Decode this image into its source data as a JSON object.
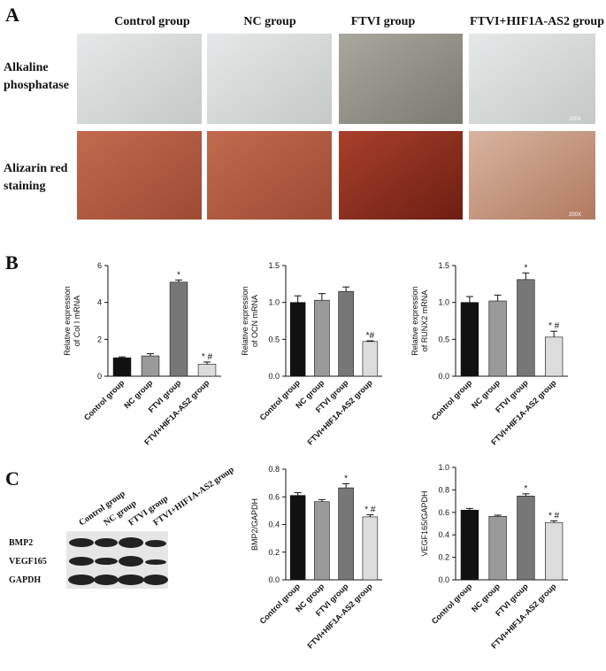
{
  "panel_labels": [
    "A",
    "B",
    "C"
  ],
  "panel_a": {
    "columns": [
      "Control group",
      "NC group",
      "FTVI group",
      "FTVI+HIF1A-AS2 group"
    ],
    "rows": [
      [
        "Alkaline",
        "phosphatase"
      ],
      [
        "Alizarin red",
        "staining"
      ]
    ],
    "scale_labels": [
      "200X",
      "200X"
    ]
  },
  "panel_c": {
    "lanes": [
      "Control group",
      "NC group",
      "FTVI group",
      "FTVI+HIF1A-AS2 group"
    ],
    "bands": [
      "BMP2",
      "VEGF165",
      "GAPDH"
    ]
  },
  "chart_data": [
    {
      "type": "bar",
      "ylabel": [
        "Relative expression",
        "of Col I mRNA"
      ],
      "categories": [
        "Control group",
        "NC group",
        "FTVI group",
        "FTVI+HIF1A-AS2 group"
      ],
      "values": [
        1.0,
        1.1,
        5.1,
        0.65
      ],
      "errors": [
        0.05,
        0.12,
        0.12,
        0.12
      ],
      "annotations": [
        null,
        null,
        "*",
        "* #"
      ],
      "colors": [
        "#111111",
        "#9a9a9a",
        "#777777",
        "#dcdcdc"
      ],
      "ylim": [
        0,
        6
      ],
      "yticks": [
        0,
        2,
        4,
        6
      ]
    },
    {
      "type": "bar",
      "ylabel": [
        "Relative expression",
        "of OCN mRNA"
      ],
      "categories": [
        "Control group",
        "NC group",
        "FTVI group",
        "FTVI+HIF1A-AS2 group"
      ],
      "values": [
        1.0,
        1.03,
        1.15,
        0.47
      ],
      "errors": [
        0.09,
        0.09,
        0.06,
        0.01
      ],
      "annotations": [
        null,
        null,
        null,
        "*#"
      ],
      "colors": [
        "#111111",
        "#9a9a9a",
        "#777777",
        "#dcdcdc"
      ],
      "ylim": [
        0,
        1.5
      ],
      "yticks": [
        {
          "value": 0,
          "label": "0.0"
        },
        {
          "value": 0.5,
          "label": "0.5"
        },
        {
          "value": 1,
          "label": "1.0"
        },
        {
          "value": 1.5,
          "label": "1.5"
        }
      ]
    },
    {
      "type": "bar",
      "ylabel": [
        "Relative expression",
        "of RUNX2 mRNA"
      ],
      "categories": [
        "Control group",
        "NC group",
        "FTVI group",
        "FTVI+HIF1A-AS2 group"
      ],
      "values": [
        1.0,
        1.02,
        1.31,
        0.53
      ],
      "errors": [
        0.08,
        0.08,
        0.09,
        0.08
      ],
      "annotations": [
        null,
        null,
        "*",
        "* #"
      ],
      "colors": [
        "#111111",
        "#9a9a9a",
        "#777777",
        "#dcdcdc"
      ],
      "ylim": [
        0,
        1.5
      ],
      "yticks": [
        {
          "value": 0,
          "label": "0.0"
        },
        {
          "value": 0.5,
          "label": "0.5"
        },
        {
          "value": 1,
          "label": "1.0"
        },
        {
          "value": 1.5,
          "label": "1.5"
        }
      ]
    },
    {
      "type": "bar",
      "ylabel": [
        "BMP2/GAPDH"
      ],
      "categories": [
        "Control group",
        "NC group",
        "FTVI group",
        "FTVI+HIF1A-AS2 group"
      ],
      "values": [
        0.61,
        0.565,
        0.665,
        0.455
      ],
      "errors": [
        0.02,
        0.015,
        0.03,
        0.015
      ],
      "annotations": [
        null,
        null,
        "*",
        "* #"
      ],
      "colors": [
        "#111111",
        "#9a9a9a",
        "#777777",
        "#dcdcdc"
      ],
      "ylim": [
        0,
        0.8
      ],
      "yticks": [
        {
          "value": 0,
          "label": "0.0"
        },
        {
          "value": 0.2,
          "label": "0.2"
        },
        {
          "value": 0.4,
          "label": "0.4"
        },
        {
          "value": 0.6,
          "label": "0.6"
        },
        {
          "value": 0.8,
          "label": "0.8"
        }
      ]
    },
    {
      "type": "bar",
      "ylabel": [
        "VEGF165/GAPDH"
      ],
      "categories": [
        "Control group",
        "NC group",
        "FTVI group",
        "FTVI+HIF1A-AS2 group"
      ],
      "values": [
        0.62,
        0.565,
        0.745,
        0.51
      ],
      "errors": [
        0.015,
        0.01,
        0.02,
        0.015
      ],
      "annotations": [
        null,
        null,
        "*",
        "* #"
      ],
      "colors": [
        "#111111",
        "#9a9a9a",
        "#777777",
        "#dcdcdc"
      ],
      "ylim": [
        0,
        1.0
      ],
      "yticks": [
        {
          "value": 0,
          "label": "0.0"
        },
        {
          "value": 0.2,
          "label": "0.2"
        },
        {
          "value": 0.4,
          "label": "0.4"
        },
        {
          "value": 0.6,
          "label": "0.6"
        },
        {
          "value": 0.8,
          "label": "0.8"
        },
        {
          "value": 1,
          "label": "1.0"
        }
      ]
    }
  ]
}
